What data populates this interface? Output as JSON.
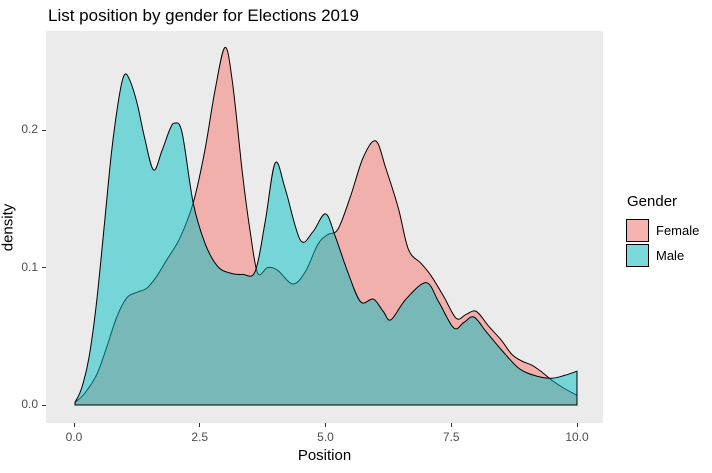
{
  "title": "List position by gender for Elections 2019",
  "axes": {
    "x": {
      "label": "Position",
      "tick_labels": [
        "0.0",
        "2.5",
        "5.0",
        "7.5",
        "10.0"
      ],
      "tick_values": [
        0,
        2.5,
        5,
        7.5,
        10
      ]
    },
    "y": {
      "label": "density",
      "tick_labels": [
        "0.0",
        "0.1",
        "0.2"
      ],
      "tick_values": [
        0,
        0.1,
        0.2
      ]
    }
  },
  "legend": {
    "title": "Gender",
    "entries": [
      {
        "label": "Female",
        "color": "#F8766D"
      },
      {
        "label": "Male",
        "color": "#00BFC4"
      }
    ]
  },
  "style": {
    "panel_background": "#EBEBEB",
    "outline_color": "#000000",
    "fill_opacity": 0.5
  },
  "chart_data": {
    "type": "area",
    "title": "List position by gender for Elections 2019",
    "xlabel": "Position",
    "ylabel": "density",
    "xlim": [
      0,
      10
    ],
    "ylim": [
      0,
      0.26
    ],
    "grid": false,
    "legend_position": "right",
    "series": [
      {
        "name": "Female",
        "color": "#F8766D",
        "points": [
          [
            0.02,
            0.002
          ],
          [
            0.2,
            0.008
          ],
          [
            0.45,
            0.022
          ],
          [
            0.65,
            0.042
          ],
          [
            0.85,
            0.064
          ],
          [
            1.05,
            0.078
          ],
          [
            1.25,
            0.082
          ],
          [
            1.45,
            0.085
          ],
          [
            1.65,
            0.094
          ],
          [
            1.85,
            0.106
          ],
          [
            2.1,
            0.121
          ],
          [
            2.37,
            0.147
          ],
          [
            2.6,
            0.185
          ],
          [
            2.8,
            0.228
          ],
          [
            3.0,
            0.26
          ],
          [
            3.15,
            0.235
          ],
          [
            3.35,
            0.168
          ],
          [
            3.5,
            0.127
          ],
          [
            3.65,
            0.096
          ],
          [
            3.85,
            0.1
          ],
          [
            4.05,
            0.098
          ],
          [
            4.35,
            0.088
          ],
          [
            4.6,
            0.097
          ],
          [
            4.85,
            0.117
          ],
          [
            5.05,
            0.124
          ],
          [
            5.25,
            0.128
          ],
          [
            5.5,
            0.152
          ],
          [
            5.75,
            0.18
          ],
          [
            6.0,
            0.192
          ],
          [
            6.2,
            0.172
          ],
          [
            6.45,
            0.143
          ],
          [
            6.65,
            0.113
          ],
          [
            6.9,
            0.103
          ],
          [
            7.1,
            0.094
          ],
          [
            7.35,
            0.079
          ],
          [
            7.6,
            0.063
          ],
          [
            7.8,
            0.066
          ],
          [
            8.0,
            0.068
          ],
          [
            8.25,
            0.057
          ],
          [
            8.5,
            0.047
          ],
          [
            8.7,
            0.037
          ],
          [
            8.9,
            0.032
          ],
          [
            9.1,
            0.029
          ],
          [
            9.3,
            0.024
          ],
          [
            9.5,
            0.018
          ],
          [
            9.75,
            0.012
          ],
          [
            10.0,
            0.007
          ]
        ]
      },
      {
        "name": "Male",
        "color": "#00BFC4",
        "points": [
          [
            0.02,
            0.002
          ],
          [
            0.15,
            0.012
          ],
          [
            0.3,
            0.035
          ],
          [
            0.45,
            0.075
          ],
          [
            0.6,
            0.13
          ],
          [
            0.75,
            0.185
          ],
          [
            0.9,
            0.225
          ],
          [
            1.0,
            0.24
          ],
          [
            1.1,
            0.237
          ],
          [
            1.25,
            0.22
          ],
          [
            1.4,
            0.195
          ],
          [
            1.58,
            0.171
          ],
          [
            1.75,
            0.185
          ],
          [
            1.9,
            0.2
          ],
          [
            2.0,
            0.205
          ],
          [
            2.15,
            0.198
          ],
          [
            2.37,
            0.147
          ],
          [
            2.6,
            0.118
          ],
          [
            2.85,
            0.101
          ],
          [
            3.1,
            0.096
          ],
          [
            3.35,
            0.095
          ],
          [
            3.6,
            0.097
          ],
          [
            3.8,
            0.133
          ],
          [
            4.0,
            0.176
          ],
          [
            4.2,
            0.157
          ],
          [
            4.5,
            0.12
          ],
          [
            4.75,
            0.126
          ],
          [
            5.0,
            0.139
          ],
          [
            5.2,
            0.122
          ],
          [
            5.45,
            0.096
          ],
          [
            5.7,
            0.075
          ],
          [
            5.95,
            0.077
          ],
          [
            6.15,
            0.068
          ],
          [
            6.3,
            0.062
          ],
          [
            6.6,
            0.077
          ],
          [
            7.0,
            0.089
          ],
          [
            7.25,
            0.075
          ],
          [
            7.55,
            0.056
          ],
          [
            7.75,
            0.06
          ],
          [
            7.95,
            0.064
          ],
          [
            8.2,
            0.053
          ],
          [
            8.5,
            0.04
          ],
          [
            8.85,
            0.0265
          ],
          [
            9.2,
            0.021
          ],
          [
            9.5,
            0.0195
          ],
          [
            9.75,
            0.0215
          ],
          [
            10.0,
            0.0246
          ]
        ]
      }
    ]
  }
}
